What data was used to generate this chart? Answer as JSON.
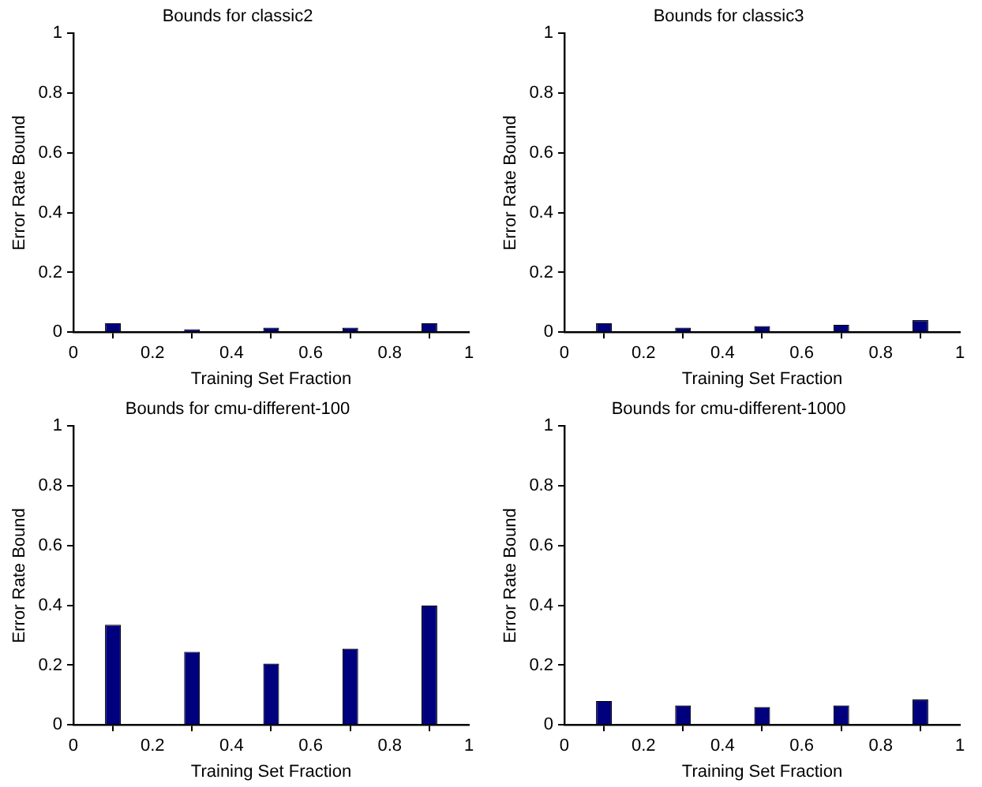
{
  "chart_data": [
    {
      "type": "bar",
      "title": "Bounds for classic2",
      "xlabel": "Training Set Fraction",
      "ylabel": "Error Rate Bound",
      "x": [
        0.1,
        0.3,
        0.5,
        0.7,
        0.9
      ],
      "values": [
        0.03,
        0.01,
        0.015,
        0.015,
        0.03
      ],
      "color": "#00007f",
      "xlim": [
        0,
        1
      ],
      "xticks": [
        0,
        0.2,
        0.4,
        0.6,
        0.8,
        1
      ],
      "ylim": [
        0,
        1
      ],
      "yticks": [
        0,
        0.2,
        0.4,
        0.6,
        0.8,
        1
      ],
      "grid": false,
      "legend": false
    },
    {
      "type": "bar",
      "title": "Bounds for classic3",
      "xlabel": "Training Set Fraction",
      "ylabel": "Error Rate Bound",
      "x": [
        0.1,
        0.3,
        0.5,
        0.7,
        0.9
      ],
      "values": [
        0.03,
        0.015,
        0.02,
        0.025,
        0.04
      ],
      "color": "#00007f",
      "xlim": [
        0,
        1
      ],
      "xticks": [
        0,
        0.2,
        0.4,
        0.6,
        0.8,
        1
      ],
      "ylim": [
        0,
        1
      ],
      "yticks": [
        0,
        0.2,
        0.4,
        0.6,
        0.8,
        1
      ],
      "grid": false,
      "legend": false
    },
    {
      "type": "bar",
      "title": "Bounds for cmu-different-100",
      "xlabel": "Training Set Fraction",
      "ylabel": "Error Rate Bound",
      "x": [
        0.1,
        0.3,
        0.5,
        0.7,
        0.9
      ],
      "values": [
        0.335,
        0.245,
        0.205,
        0.255,
        0.4
      ],
      "color": "#00007f",
      "xlim": [
        0,
        1
      ],
      "xticks": [
        0,
        0.2,
        0.4,
        0.6,
        0.8,
        1
      ],
      "ylim": [
        0,
        1
      ],
      "yticks": [
        0,
        0.2,
        0.4,
        0.6,
        0.8,
        1
      ],
      "grid": false,
      "legend": false
    },
    {
      "type": "bar",
      "title": "Bounds for cmu-different-1000",
      "xlabel": "Training Set Fraction",
      "ylabel": "Error Rate Bound",
      "x": [
        0.1,
        0.3,
        0.5,
        0.7,
        0.9
      ],
      "values": [
        0.08,
        0.065,
        0.06,
        0.065,
        0.085
      ],
      "color": "#00007f",
      "xlim": [
        0,
        1
      ],
      "xticks": [
        0,
        0.2,
        0.4,
        0.6,
        0.8,
        1
      ],
      "ylim": [
        0,
        1
      ],
      "yticks": [
        0,
        0.2,
        0.4,
        0.6,
        0.8,
        1
      ],
      "grid": false,
      "legend": false
    }
  ]
}
